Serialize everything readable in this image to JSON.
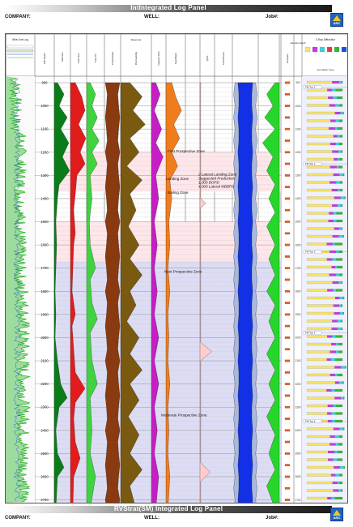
{
  "header": {
    "title": "IntIntegrated Log Panel",
    "company_label": "COMPANY:",
    "well_label": "WELL:",
    "job_label": "Job#:"
  },
  "footer": {
    "title": "RVStrat(SM) Integrated Log Panel",
    "company_label": "COMPANY:",
    "well_label": "WELL:",
    "job_label": "Job#:"
  },
  "logo": {
    "text": "ARC"
  },
  "tracks": {
    "wire_line_log": "Wire Line Log",
    "depth": "MD Depth",
    "methane": "Methane",
    "total_gas": "Total Gas",
    "total_oil": "Total Oil",
    "producibility": "Producibility",
    "permeability": "Permeability",
    "oil_reservoir_header": "Reservoir",
    "organic_rich": "Organic Rich",
    "gas_water_contact": "Gas/Water",
    "qos": "QOS",
    "fluid_phase": "Fluid Phase",
    "sample_depth": "Sample Depth",
    "xray_diffraction": "X-Ray Diffraction",
    "formation_tops": "Formation Tops",
    "formation_type": "Formation Type",
    "samples": "Samples"
  },
  "depths": [
    "900",
    "1000",
    "1100",
    "1200",
    "1300",
    "1400",
    "1500",
    "1600",
    "1700",
    "1800",
    "1900",
    "2000",
    "2100",
    "2200",
    "2300",
    "2400",
    "2500",
    "2600",
    "2700"
  ],
  "zone_labels": [
    "First Prospective Zone",
    "Landing Zone",
    "Bailing Zone",
    "2 Lateral Landing Zone\nSuggested Production\n1,000 BOPD\n4,000 Lateral MBBRS",
    "Next Prospective Zone",
    "Moderate Prospective Zone"
  ],
  "formation_tops": [
    "FM Top 1",
    "FM Top 2",
    "FM Top 3",
    "FM Top 4",
    "FM Top 5"
  ],
  "colors": {
    "gamma": "#2fb52f",
    "methane_fill": "#0a7d1a",
    "gas_fill": "#e11c1c",
    "gas_fill_light": "#f7a0a0",
    "oil_fill": "#3fd43f",
    "producibility_fill": "#8a3a10",
    "permeability_fill": "#7a5a10",
    "organic_fill": "#c41ec4",
    "water_fill": "#f07c1c",
    "qos_fill": "#ffcccc",
    "fluid_fill": "#1230e6",
    "fluid_outer": "#a8b8e0",
    "ratio_fill": "#27d62a",
    "zone_pink": "#ffe6ea",
    "zone_blue": "#dcdcf5",
    "formation_yellow": "#f6e36a"
  }
}
